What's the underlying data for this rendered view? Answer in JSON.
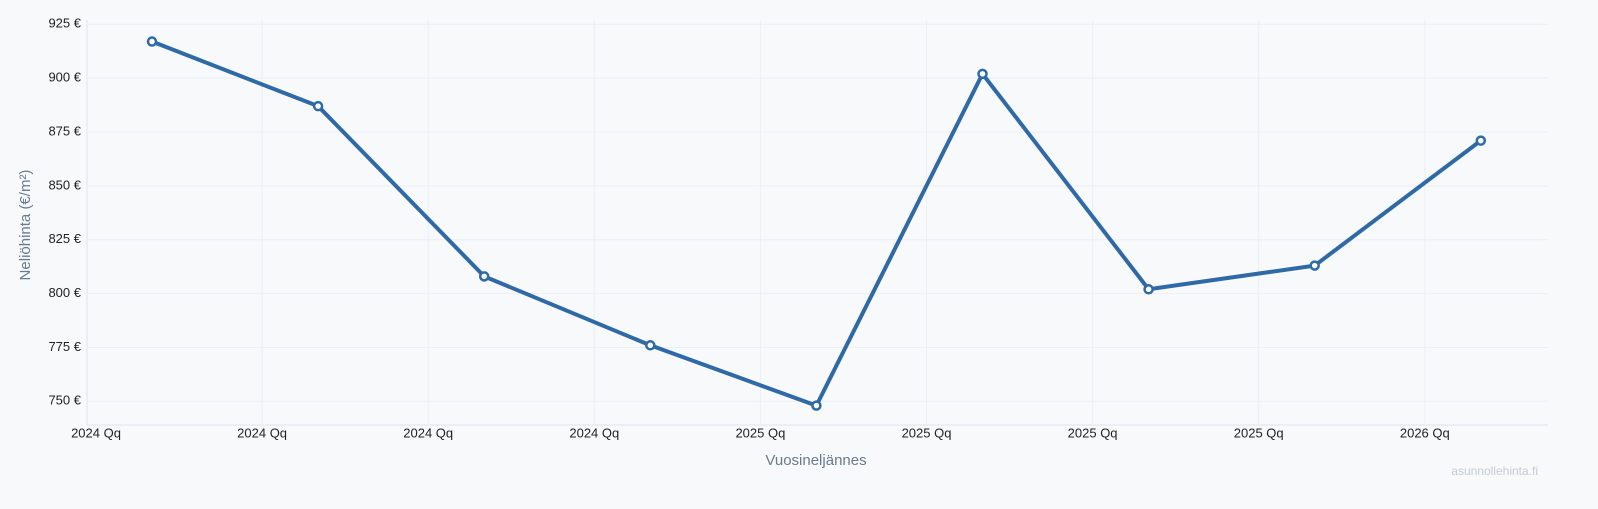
{
  "chart_data": {
    "type": "line",
    "x_label": "Vuosineljännes",
    "y_label": "Neliöhinta (€/m²)",
    "watermark": "asunnollehinta.fi",
    "categories": [
      "2024 Qq",
      "2024 Qq",
      "2024 Qq",
      "2024 Qq",
      "2025 Qq",
      "2025 Qq",
      "2025 Qq",
      "2025 Qq",
      "2026 Qq"
    ],
    "values": [
      917,
      887,
      808,
      776,
      748,
      902,
      802,
      813,
      871
    ],
    "color": "#2f6aa6",
    "ylim": [
      739,
      927
    ],
    "yticks": [
      {
        "value": 750,
        "label": "750 €"
      },
      {
        "value": 775,
        "label": "775 €"
      },
      {
        "value": 800,
        "label": "800 €"
      },
      {
        "value": 825,
        "label": "825 €"
      },
      {
        "value": 850,
        "label": "850 €"
      },
      {
        "value": 875,
        "label": "875 €"
      },
      {
        "value": 900,
        "label": "900 €"
      },
      {
        "value": 925,
        "label": "925 €"
      }
    ],
    "grid": true
  }
}
